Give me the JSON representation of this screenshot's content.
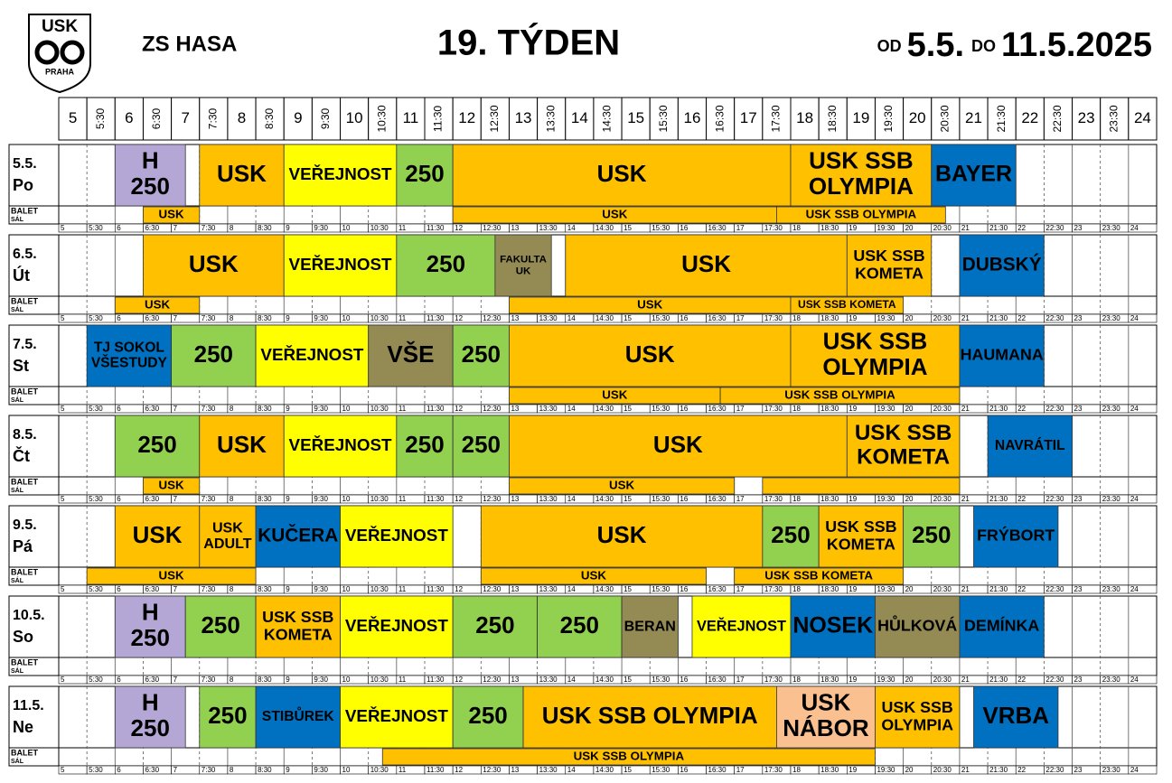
{
  "header": {
    "logo_top": "USK",
    "logo_bottom": "PRAHA",
    "venue": "ZS HASA",
    "week": "19. TÝDEN",
    "from_word": "OD",
    "from": "5.5.",
    "to_word": "DO",
    "to": "11.5.2025"
  },
  "times": [
    "5",
    "5:30",
    "6",
    "6:30",
    "7",
    "7:30",
    "8",
    "8:30",
    "9",
    "9:30",
    "10",
    "10:30",
    "11",
    "11:30",
    "12",
    "12:30",
    "13",
    "13:30",
    "14",
    "14:30",
    "15",
    "15:30",
    "16",
    "16:30",
    "17",
    "17:30",
    "18",
    "18:30",
    "19",
    "19:30",
    "20",
    "20:30",
    "21",
    "21:30",
    "22",
    "22:30",
    "23",
    "23:30",
    "24"
  ],
  "balet_label": [
    "BALET",
    "SÁL"
  ],
  "days": [
    {
      "date": "5.5.",
      "day": "Po",
      "events": [
        {
          "lines": [
            "H",
            "250"
          ],
          "start": 6,
          "end": 7.25,
          "color": "#b4a7d6"
        },
        {
          "lines": [
            "USK"
          ],
          "start": 7.5,
          "end": 9,
          "color": "#ffc000"
        },
        {
          "lines": [
            "VEŘEJNOST"
          ],
          "start": 9,
          "end": 11,
          "color": "#ffff00"
        },
        {
          "lines": [
            "250"
          ],
          "start": 11,
          "end": 12,
          "color": "#92d050"
        },
        {
          "lines": [
            "USK"
          ],
          "start": 12,
          "end": 18,
          "color": "#ffc000"
        },
        {
          "lines": [
            "USK SSB",
            "OLYMPIA"
          ],
          "start": 18,
          "end": 20.5,
          "color": "#ffc000"
        },
        {
          "lines": [
            "BAYER"
          ],
          "start": 20.5,
          "end": 22,
          "color": "#0070c0"
        }
      ],
      "balet": [
        {
          "lines": [
            "USK"
          ],
          "start": 6.5,
          "end": 7.5,
          "color": "#ffc000"
        },
        {
          "lines": [
            "USK"
          ],
          "start": 12,
          "end": 17.75,
          "color": "#ffc000"
        },
        {
          "lines": [
            "USK SSB OLYMPIA"
          ],
          "start": 17.75,
          "end": 20.75,
          "color": "#ffc000"
        }
      ]
    },
    {
      "date": "6.5.",
      "day": "Út",
      "events": [
        {
          "lines": [
            "USK"
          ],
          "start": 6.5,
          "end": 9,
          "color": "#ffc000"
        },
        {
          "lines": [
            "VEŘEJNOST"
          ],
          "start": 9,
          "end": 11,
          "color": "#ffff00"
        },
        {
          "lines": [
            "250"
          ],
          "start": 11,
          "end": 12.75,
          "color": "#92d050"
        },
        {
          "lines": [
            "FAKULTA",
            "UK"
          ],
          "start": 12.75,
          "end": 13.75,
          "color": "#948a54"
        },
        {
          "lines": [
            "USK"
          ],
          "start": 14,
          "end": 19,
          "color": "#ffc000"
        },
        {
          "lines": [
            "USK SSB",
            "KOMETA"
          ],
          "start": 19,
          "end": 20.5,
          "color": "#ffc000"
        },
        {
          "lines": [
            "DUBSKÝ"
          ],
          "start": 21,
          "end": 22.5,
          "color": "#0070c0"
        }
      ],
      "balet": [
        {
          "lines": [
            "USK"
          ],
          "start": 6,
          "end": 7.5,
          "color": "#ffc000"
        },
        {
          "lines": [
            "USK"
          ],
          "start": 13,
          "end": 18,
          "color": "#ffc000"
        },
        {
          "lines": [
            "USK SSB KOMETA"
          ],
          "start": 18,
          "end": 20,
          "color": "#ffc000"
        }
      ]
    },
    {
      "date": "7.5.",
      "day": "St",
      "events": [
        {
          "lines": [
            "TJ SOKOL",
            "VŠESTUDY"
          ],
          "start": 5.5,
          "end": 7,
          "color": "#0070c0"
        },
        {
          "lines": [
            "250"
          ],
          "start": 7,
          "end": 8.5,
          "color": "#92d050"
        },
        {
          "lines": [
            "VEŘEJNOST"
          ],
          "start": 8.5,
          "end": 10.5,
          "color": "#ffff00"
        },
        {
          "lines": [
            "VŠE"
          ],
          "start": 10.5,
          "end": 12,
          "color": "#948a54"
        },
        {
          "lines": [
            "250"
          ],
          "start": 12,
          "end": 13,
          "color": "#92d050"
        },
        {
          "lines": [
            "USK"
          ],
          "start": 13,
          "end": 18,
          "color": "#ffc000"
        },
        {
          "lines": [
            "USK SSB",
            "OLYMPIA"
          ],
          "start": 18,
          "end": 21,
          "color": "#ffc000"
        },
        {
          "lines": [
            "HAUMANA"
          ],
          "start": 21,
          "end": 22.5,
          "color": "#0070c0"
        }
      ],
      "balet": [
        {
          "lines": [
            "USK"
          ],
          "start": 13,
          "end": 16.75,
          "color": "#ffc000"
        },
        {
          "lines": [
            "USK SSB OLYMPIA"
          ],
          "start": 16.75,
          "end": 21,
          "color": "#ffc000"
        }
      ]
    },
    {
      "date": "8.5.",
      "day": "Čt",
      "events": [
        {
          "lines": [
            "250"
          ],
          "start": 6,
          "end": 7.5,
          "color": "#92d050"
        },
        {
          "lines": [
            "USK"
          ],
          "start": 7.5,
          "end": 9,
          "color": "#ffc000"
        },
        {
          "lines": [
            "VEŘEJNOST"
          ],
          "start": 9,
          "end": 11,
          "color": "#ffff00"
        },
        {
          "lines": [
            "250"
          ],
          "start": 11,
          "end": 12,
          "color": "#92d050"
        },
        {
          "lines": [
            "250"
          ],
          "start": 12,
          "end": 13,
          "color": "#92d050"
        },
        {
          "lines": [
            "USK"
          ],
          "start": 13,
          "end": 19,
          "color": "#ffc000"
        },
        {
          "lines": [
            "USK SSB",
            "KOMETA"
          ],
          "start": 19,
          "end": 21,
          "color": "#ffc000"
        },
        {
          "lines": [
            "NAVRÁTIL"
          ],
          "start": 21.5,
          "end": 23,
          "color": "#0070c0"
        }
      ],
      "balet": [
        {
          "lines": [
            "USK"
          ],
          "start": 6.5,
          "end": 7.5,
          "color": "#ffc000"
        },
        {
          "lines": [
            "USK"
          ],
          "start": 13,
          "end": 17,
          "color": "#ffc000"
        },
        {
          "start": 17.5,
          "end": 21,
          "color": "#ffc000"
        }
      ]
    },
    {
      "date": "9.5.",
      "day": "Pá",
      "events": [
        {
          "lines": [
            "USK"
          ],
          "start": 6,
          "end": 7.5,
          "color": "#ffc000"
        },
        {
          "lines": [
            "USK",
            "ADULT"
          ],
          "start": 7.5,
          "end": 8.5,
          "color": "#ffc000"
        },
        {
          "lines": [
            "KUČERA"
          ],
          "start": 8.5,
          "end": 10,
          "color": "#0070c0"
        },
        {
          "lines": [
            "VEŘEJNOST"
          ],
          "start": 10,
          "end": 12,
          "color": "#ffff00"
        },
        {
          "lines": [
            "USK"
          ],
          "start": 12.5,
          "end": 17.5,
          "color": "#ffc000"
        },
        {
          "lines": [
            "250"
          ],
          "start": 17.5,
          "end": 18.5,
          "color": "#92d050"
        },
        {
          "lines": [
            "USK SSB",
            "KOMETA"
          ],
          "start": 18.5,
          "end": 20,
          "color": "#ffc000"
        },
        {
          "lines": [
            "250"
          ],
          "start": 20,
          "end": 21,
          "color": "#92d050"
        },
        {
          "lines": [
            "FRÝBORT"
          ],
          "start": 21.25,
          "end": 22.75,
          "color": "#0070c0"
        }
      ],
      "balet": [
        {
          "lines": [
            "USK"
          ],
          "start": 5.5,
          "end": 8.5,
          "color": "#ffc000"
        },
        {
          "lines": [
            "USK"
          ],
          "start": 12.5,
          "end": 16.5,
          "color": "#ffc000"
        },
        {
          "lines": [
            "USK SSB KOMETA"
          ],
          "start": 17,
          "end": 20,
          "color": "#ffc000"
        }
      ]
    },
    {
      "date": "10.5.",
      "day": "So",
      "events": [
        {
          "lines": [
            "H",
            "250"
          ],
          "start": 6,
          "end": 7.25,
          "color": "#b4a7d6"
        },
        {
          "lines": [
            "250"
          ],
          "start": 7.25,
          "end": 8.5,
          "color": "#92d050"
        },
        {
          "lines": [
            "USK SSB",
            "KOMETA"
          ],
          "start": 8.5,
          "end": 10,
          "color": "#ffc000"
        },
        {
          "lines": [
            "VEŘEJNOST"
          ],
          "start": 10,
          "end": 12,
          "color": "#ffff00"
        },
        {
          "lines": [
            "250"
          ],
          "start": 12,
          "end": 13.5,
          "color": "#92d050"
        },
        {
          "lines": [
            "250"
          ],
          "start": 13.5,
          "end": 15,
          "color": "#92d050"
        },
        {
          "lines": [
            "BERAN"
          ],
          "start": 15,
          "end": 16,
          "color": "#948a54"
        },
        {
          "lines": [
            "VEŘEJNOST"
          ],
          "start": 16.25,
          "end": 18,
          "color": "#ffff00"
        },
        {
          "lines": [
            "NOSEK"
          ],
          "start": 18,
          "end": 19.5,
          "color": "#0070c0"
        },
        {
          "lines": [
            "HŮLKOVÁ"
          ],
          "start": 19.5,
          "end": 21,
          "color": "#948a54"
        },
        {
          "lines": [
            "DEMÍNKA"
          ],
          "start": 21,
          "end": 22.5,
          "color": "#0070c0"
        }
      ],
      "balet": []
    },
    {
      "date": "11.5.",
      "day": "Ne",
      "events": [
        {
          "lines": [
            "H",
            "250"
          ],
          "start": 6,
          "end": 7.25,
          "color": "#b4a7d6"
        },
        {
          "lines": [
            "250"
          ],
          "start": 7.5,
          "end": 8.5,
          "color": "#92d050"
        },
        {
          "lines": [
            "STIBŮREK"
          ],
          "start": 8.5,
          "end": 10,
          "color": "#0070c0"
        },
        {
          "lines": [
            "VEŘEJNOST"
          ],
          "start": 10,
          "end": 12,
          "color": "#ffff00"
        },
        {
          "lines": [
            "250"
          ],
          "start": 12,
          "end": 13.25,
          "color": "#92d050"
        },
        {
          "lines": [
            "USK SSB OLYMPIA"
          ],
          "start": 13.25,
          "end": 17.75,
          "color": "#ffc000"
        },
        {
          "lines": [
            "USK",
            "NÁBOR"
          ],
          "start": 17.75,
          "end": 19.5,
          "color": "#fac090"
        },
        {
          "lines": [
            "USK SSB",
            "OLYMPIA"
          ],
          "start": 19.5,
          "end": 21,
          "color": "#ffc000"
        },
        {
          "lines": [
            "VRBA"
          ],
          "start": 21.25,
          "end": 22.75,
          "color": "#0070c0"
        }
      ],
      "balet": [
        {
          "lines": [
            "USK SSB OLYMPIA"
          ],
          "start": 10.75,
          "end": 19.5,
          "color": "#ffc000"
        }
      ]
    }
  ]
}
